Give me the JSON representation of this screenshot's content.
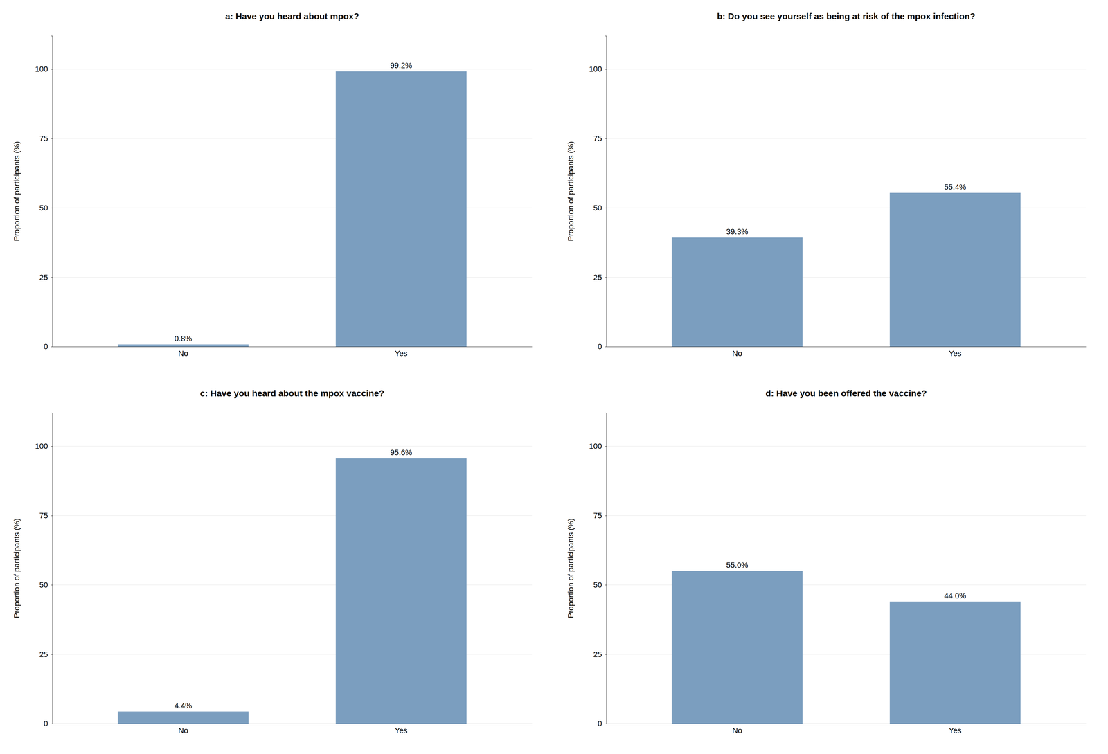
{
  "chart_data": [
    {
      "type": "bar",
      "title": "a: Have you heard about mpox?",
      "y_label": "Proportion of participants (%)",
      "categories": [
        "No",
        "Yes"
      ],
      "values": [
        0.8,
        99.2
      ],
      "value_labels": [
        "0.8%",
        "99.2%"
      ],
      "color": "#7B9EBF",
      "ylim": [
        0,
        112
      ],
      "yticks": [
        0,
        25,
        50,
        75,
        100
      ],
      "grid": true,
      "data_labels": true
    },
    {
      "type": "bar",
      "title": "b: Do you see yourself as being at risk of the mpox infection?",
      "y_label": "Proportion of participants (%)",
      "categories": [
        "No",
        "Yes"
      ],
      "values": [
        39.3,
        55.4
      ],
      "value_labels": [
        "39.3%",
        "55.4%"
      ],
      "color": "#7B9EBF",
      "ylim": [
        0,
        112
      ],
      "yticks": [
        0,
        25,
        50,
        75,
        100
      ],
      "grid": true,
      "data_labels": true
    },
    {
      "type": "bar",
      "title": "c: Have you heard about the mpox vaccine?",
      "y_label": "Proportion of participants (%)",
      "categories": [
        "No",
        "Yes"
      ],
      "values": [
        4.4,
        95.6
      ],
      "value_labels": [
        "4.4%",
        "95.6%"
      ],
      "color": "#7B9EBF",
      "ylim": [
        0,
        112
      ],
      "yticks": [
        0,
        25,
        50,
        75,
        100
      ],
      "grid": true,
      "data_labels": true
    },
    {
      "type": "bar",
      "title": "d: Have you been offered the vaccine?",
      "y_label": "Proportion of participants (%)",
      "categories": [
        "No",
        "Yes"
      ],
      "values": [
        55.0,
        44.0
      ],
      "value_labels": [
        "55.0%",
        "44.0%"
      ],
      "color": "#7B9EBF",
      "ylim": [
        0,
        112
      ],
      "yticks": [
        0,
        25,
        50,
        75,
        100
      ],
      "grid": true,
      "data_labels": true
    }
  ]
}
